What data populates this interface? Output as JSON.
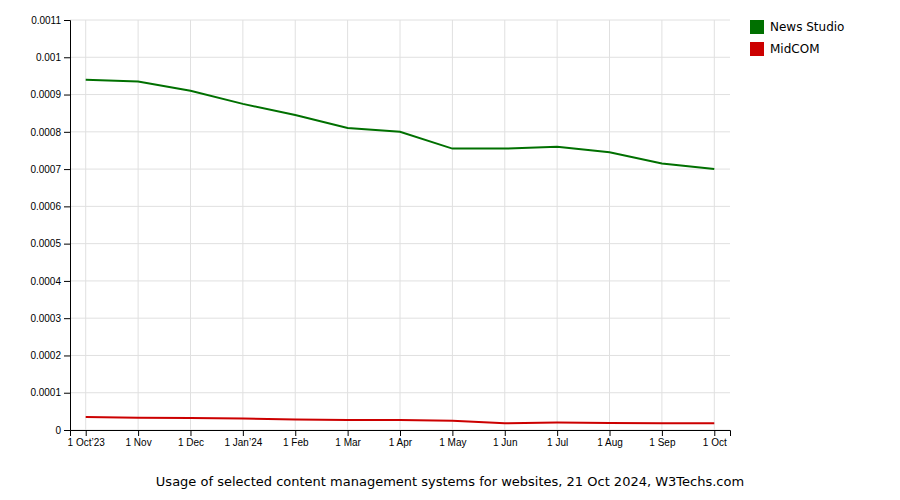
{
  "chart_data": {
    "type": "line",
    "title": "Usage of selected content management systems for websites, 21 Oct 2024, W3Techs.com",
    "categories": [
      "1 Oct’23",
      "1 Nov",
      "1 Dec",
      "1 Jan’24",
      "1 Feb",
      "1 Mar",
      "1 Apr",
      "1 May",
      "1 Jun",
      "1 Jul",
      "1 Aug",
      "1 Sep",
      "1 Oct"
    ],
    "series": [
      {
        "name": "News Studio",
        "color": "#007000",
        "values": [
          0.00094,
          0.000935,
          0.00091,
          0.000875,
          0.000845,
          0.00081,
          0.0008,
          0.000755,
          0.000755,
          0.00076,
          0.000745,
          0.000715,
          0.0007
        ]
      },
      {
        "name": "MidCOM",
        "color": "#cc0000",
        "values": [
          3.5e-05,
          3.3e-05,
          3.2e-05,
          3.1e-05,
          2.8e-05,
          2.7e-05,
          2.7e-05,
          2.5e-05,
          1.8e-05,
          2e-05,
          1.9e-05,
          1.8e-05,
          1.8e-05
        ]
      }
    ],
    "ylim": [
      0,
      0.0011
    ],
    "yticks": [
      0,
      0.0001,
      0.0002,
      0.0003,
      0.0004,
      0.0005,
      0.0006,
      0.0007,
      0.0008,
      0.0009,
      0.001,
      0.0011
    ],
    "grid": true,
    "legend": "right"
  }
}
